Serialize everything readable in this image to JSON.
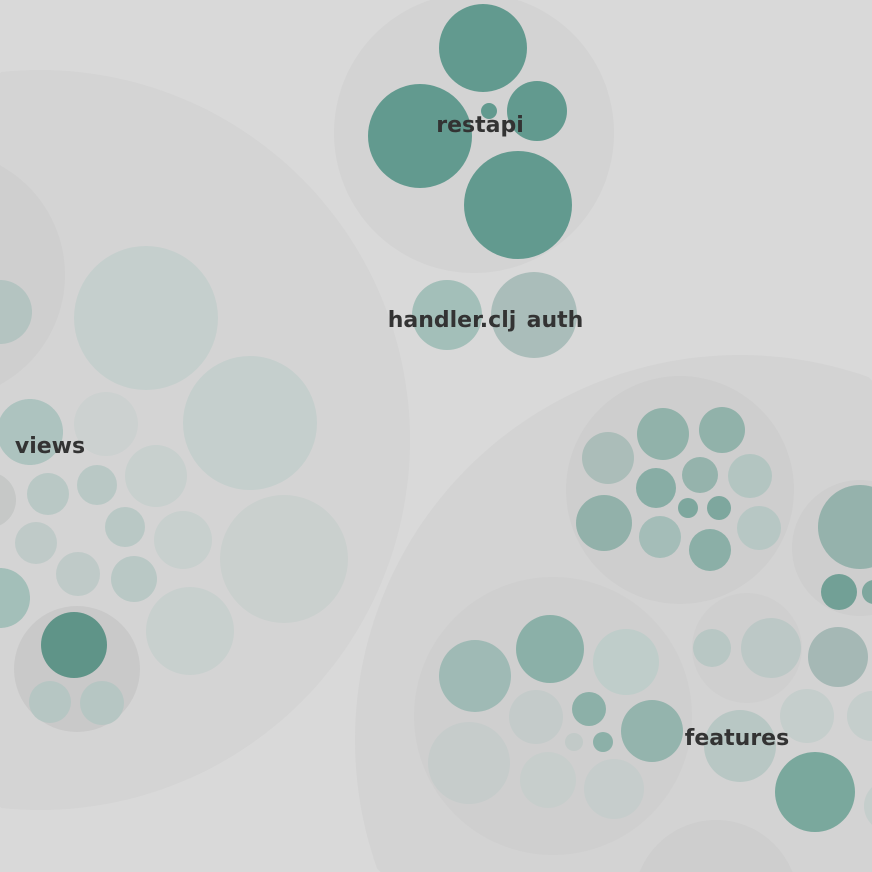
{
  "labels": {
    "restapi": "restapi",
    "handler": "handler.clj",
    "auth": "auth",
    "views": "views",
    "features": "features"
  },
  "colors": {
    "background": "#d9d9d9",
    "container": "#d3d3d3",
    "leaf_dark": "#629a8f",
    "leaf_light": "#c5cfcd"
  }
}
